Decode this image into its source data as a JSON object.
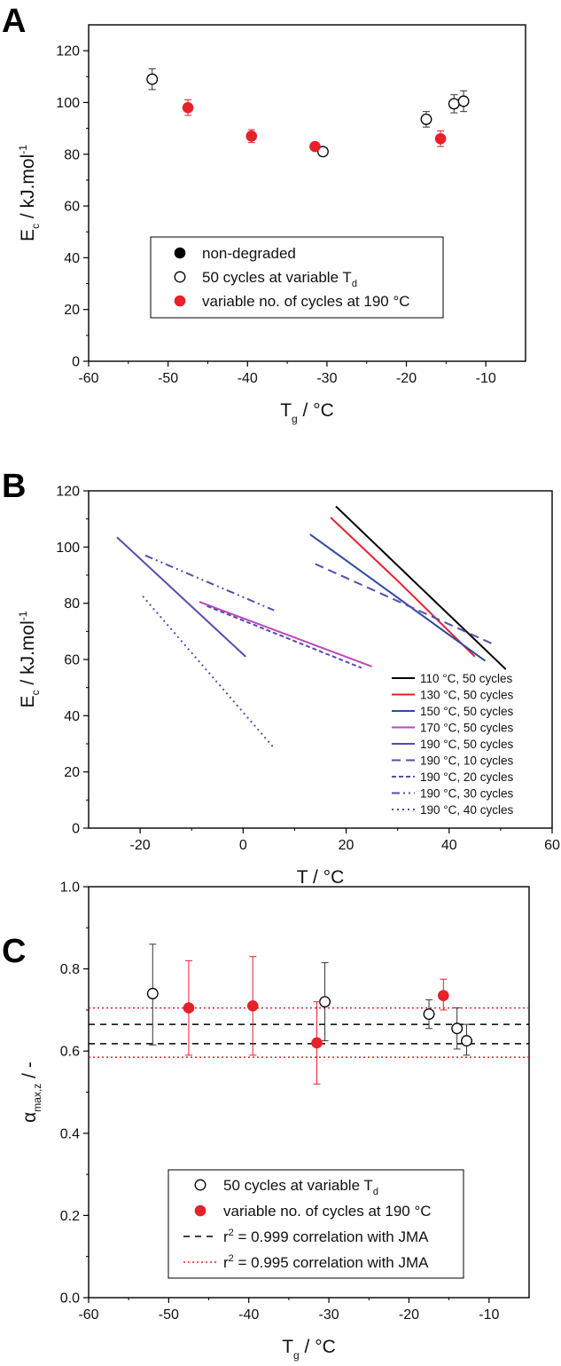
{
  "chart_data": [
    {
      "panel": "A",
      "type": "scatter",
      "title": "",
      "xlabel": {
        "main": "T",
        "sub": "g",
        "unit": "°C"
      },
      "ylabel": {
        "main": "E",
        "sub": "c",
        "unit": "kJ.mol",
        "sup": "-1"
      },
      "xlim": [
        -60,
        -5
      ],
      "ylim": [
        0,
        130
      ],
      "xticks": [
        -60,
        -50,
        -40,
        -30,
        -20,
        -10
      ],
      "yticks": [
        0,
        20,
        40,
        60,
        80,
        100,
        120
      ],
      "grid": false,
      "legend_position": "center",
      "legend": [
        {
          "label": "non-degraded",
          "marker": "filled-circle",
          "color": "#000000"
        },
        {
          "label": "50 cycles at variable T",
          "sub": "d",
          "marker": "open-circle",
          "color": "#000000"
        },
        {
          "label": "variable no. of cycles at 190 °C",
          "marker": "filled-circle",
          "color": "#e8202a"
        }
      ],
      "series": [
        {
          "name": "50 cycles at variable T",
          "sub": "d",
          "marker": "open-circle",
          "points": [
            {
              "x": -52,
              "y": 109,
              "err": 4
            },
            {
              "x": -30.5,
              "y": 81,
              "err": 0
            },
            {
              "x": -17.5,
              "y": 93.5,
              "err": 3
            },
            {
              "x": -14,
              "y": 99.5,
              "err": 3.5
            },
            {
              "x": -12.8,
              "y": 100.5,
              "err": 4
            }
          ]
        },
        {
          "name": "variable no. of cycles at 190 °C",
          "marker": "filled-circle",
          "color": "#e8202a",
          "points": [
            {
              "x": -47.5,
              "y": 98,
              "err": 3
            },
            {
              "x": -39.5,
              "y": 87,
              "err": 2.5
            },
            {
              "x": -31.5,
              "y": 83,
              "err": 1.5
            },
            {
              "x": -15.7,
              "y": 86,
              "err": 3
            }
          ]
        }
      ]
    },
    {
      "panel": "B",
      "type": "line",
      "title": "",
      "xlabel": {
        "main": "T",
        "unit": "°C"
      },
      "ylabel": {
        "main": "E",
        "sub": "c",
        "unit": "kJ.mol",
        "sup": "-1"
      },
      "xlim": [
        -30,
        60
      ],
      "ylim": [
        0,
        120
      ],
      "xticks": [
        -20,
        0,
        20,
        40,
        60
      ],
      "yticks": [
        0,
        20,
        40,
        60,
        80,
        100,
        120
      ],
      "grid": false,
      "legend_position": "bottom-right",
      "series": [
        {
          "name": "110 °C, 50 cycles",
          "color": "#000000",
          "dash": "solid",
          "x": [
            18,
            51
          ],
          "y": [
            114.5,
            56.5
          ]
        },
        {
          "name": "130 °C, 50 cycles",
          "color": "#e8202a",
          "dash": "solid",
          "x": [
            17,
            30,
            45
          ],
          "y": [
            110.5,
            88,
            61
          ]
        },
        {
          "name": "150 °C, 50 cycles",
          "color": "#2e4a9e",
          "dash": "solid",
          "x": [
            13,
            47
          ],
          "y": [
            104.5,
            59.5
          ]
        },
        {
          "name": "170 °C, 50 cycles",
          "color": "#b94ab9",
          "dash": "solid",
          "x": [
            -8.5,
            25
          ],
          "y": [
            80.5,
            57.5
          ]
        },
        {
          "name": "190 °C, 50 cycles",
          "color": "#5b4aae",
          "dash": "solid",
          "x": [
            -24.5,
            0.5
          ],
          "y": [
            103.5,
            61
          ]
        },
        {
          "name": "190 °C, 10 cycles",
          "color": "#5b4aae",
          "dash": "dash",
          "x": [
            14,
            48.5
          ],
          "y": [
            94,
            65.5
          ]
        },
        {
          "name": "190 °C, 20 cycles",
          "color": "#5b4aae",
          "dash": "shortdash",
          "x": [
            -7,
            23
          ],
          "y": [
            79,
            57
          ]
        },
        {
          "name": "190 °C, 30 cycles",
          "color": "#5b4aae",
          "dash": "dashdot",
          "x": [
            -19,
            6
          ],
          "y": [
            97,
            77.5
          ]
        },
        {
          "name": "190 °C, 40 cycles",
          "color": "#5b4aae",
          "dash": "dot",
          "x": [
            -19.5,
            6
          ],
          "y": [
            82.5,
            28.5
          ]
        }
      ]
    },
    {
      "panel": "C",
      "type": "scatter",
      "title": "",
      "xlabel": {
        "main": "T",
        "sub": "g",
        "unit": "°C"
      },
      "ylabel": {
        "main": "α",
        "sub": "max,z",
        "unit": "-"
      },
      "xlim": [
        -60,
        -5
      ],
      "ylim": [
        0.0,
        1.0
      ],
      "xticks": [
        -60,
        -50,
        -40,
        -30,
        -20,
        -10
      ],
      "yticks": [
        0.0,
        0.2,
        0.4,
        0.6,
        0.8,
        1.0
      ],
      "grid": false,
      "legend_position": "bottom-center",
      "legend": [
        {
          "label": "50 cycles at variable T",
          "sub": "d",
          "marker": "open-circle",
          "color": "#000000"
        },
        {
          "label": "variable no. of cycles at 190 °C",
          "marker": "filled-circle",
          "color": "#e8202a"
        },
        {
          "label": "r² = 0.999 correlation with JMA",
          "pre": "r",
          "sup": "2",
          "post": " = 0.999 correlation with JMA",
          "marker": "dash-line",
          "color": "#000000"
        },
        {
          "label": "r² = 0.995 correlation with JMA",
          "pre": "r",
          "sup": "2",
          "post": " = 0.995 correlation with JMA",
          "marker": "dot-line",
          "color": "#e8202a"
        }
      ],
      "series": [
        {
          "name": "50 cycles at variable T",
          "sub": "d",
          "marker": "open-circle",
          "points": [
            {
              "x": -52,
              "y": 0.74,
              "lo": 0.615,
              "hi": 0.86
            },
            {
              "x": -30.5,
              "y": 0.72,
              "lo": 0.625,
              "hi": 0.815
            },
            {
              "x": -17.5,
              "y": 0.69,
              "lo": 0.655,
              "hi": 0.725
            },
            {
              "x": -14,
              "y": 0.655,
              "lo": 0.605,
              "hi": 0.705
            },
            {
              "x": -12.8,
              "y": 0.625,
              "lo": 0.59,
              "hi": 0.665
            }
          ]
        },
        {
          "name": "variable no. of cycles at 190 °C",
          "marker": "filled-circle",
          "color": "#e8202a",
          "points": [
            {
              "x": -47.5,
              "y": 0.705,
              "lo": 0.59,
              "hi": 0.82
            },
            {
              "x": -39.5,
              "y": 0.71,
              "lo": 0.59,
              "hi": 0.83
            },
            {
              "x": -31.5,
              "y": 0.62,
              "lo": 0.52,
              "hi": 0.72
            },
            {
              "x": -15.7,
              "y": 0.735,
              "lo": 0.7,
              "hi": 0.775
            }
          ]
        }
      ],
      "hlines": [
        {
          "y": 0.665,
          "color": "#000000",
          "style": "dash"
        },
        {
          "y": 0.618,
          "color": "#000000",
          "style": "dash"
        },
        {
          "y": 0.705,
          "color": "#e8202a",
          "style": "dot"
        },
        {
          "y": 0.585,
          "color": "#e8202a",
          "style": "dot"
        }
      ]
    }
  ]
}
